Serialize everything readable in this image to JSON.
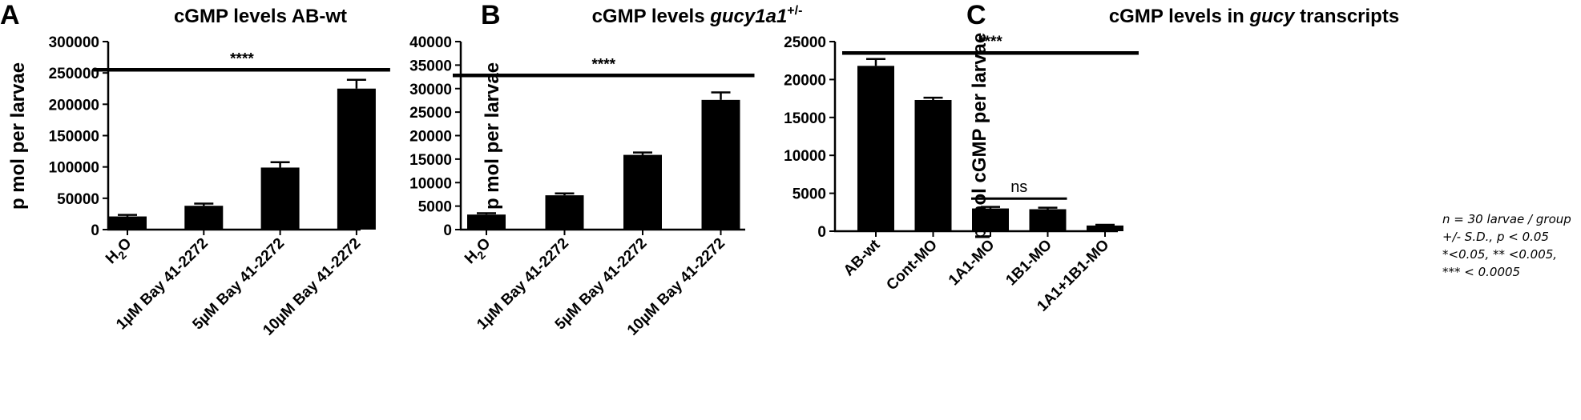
{
  "chart_data": [
    {
      "panel": "A",
      "type": "bar",
      "title": "cGMP levels AB-wt",
      "ylabel": "p mol per larvae",
      "ylim": [
        0,
        300000
      ],
      "yticks": [
        0,
        50000,
        100000,
        150000,
        200000,
        250000,
        300000
      ],
      "yticklabels": [
        "0",
        "50000",
        "100000",
        "150000",
        "200000",
        "250000",
        "300000"
      ],
      "categories": [
        "H2O",
        "1µM Bay 41-2272",
        "5µM Bay 41-2272",
        "10µM Bay 41-2272"
      ],
      "values": [
        21000,
        38000,
        99000,
        225000
      ],
      "errors": [
        2500,
        3500,
        8500,
        14000
      ],
      "significance": [
        {
          "label": "****",
          "y": 255000,
          "from": 0,
          "to": 3
        }
      ]
    },
    {
      "panel": "B",
      "type": "bar",
      "title": "cGMP levels gucy1a1+/-",
      "title_parts": {
        "text": "cGMP levels ",
        "italic": "gucy1a1",
        "sup": "+/-"
      },
      "ylabel": "p mol per larvae",
      "ylim": [
        0,
        40000
      ],
      "yticks": [
        0,
        5000,
        10000,
        15000,
        20000,
        25000,
        30000,
        35000,
        40000
      ],
      "yticklabels": [
        "0",
        "5000",
        "10000",
        "15000",
        "20000",
        "25000",
        "30000",
        "35000",
        "40000"
      ],
      "categories": [
        "H2O",
        "1µM Bay 41-2272",
        "5µM Bay 41-2272",
        "10µM Bay 41-2272"
      ],
      "values": [
        3200,
        7300,
        15900,
        27600
      ],
      "errors": [
        300,
        400,
        500,
        1600
      ],
      "significance": [
        {
          "label": "****",
          "y": 32800,
          "from": 0,
          "to": 3
        }
      ]
    },
    {
      "panel": "C",
      "type": "bar",
      "title": "cGMP levels in gucy transcripts",
      "title_parts": {
        "before": "cGMP levels in ",
        "italic": "gucy",
        "after": " transcripts"
      },
      "ylabel": "p mol cGMP per larvae",
      "ylim": [
        0,
        25000
      ],
      "yticks": [
        0,
        5000,
        10000,
        15000,
        20000,
        25000
      ],
      "yticklabels": [
        "0",
        "5000",
        "10000",
        "15000",
        "20000",
        "25000"
      ],
      "categories": [
        "AB-wt",
        "Cont-MO",
        "1A1-MO",
        "1B1-MO",
        "1A1+1B1-MO"
      ],
      "values": [
        21800,
        17300,
        3000,
        2900,
        750
      ],
      "errors": [
        900,
        300,
        200,
        200,
        100
      ],
      "significance": [
        {
          "label": "****",
          "y": 23500,
          "from": 0,
          "to": 4
        },
        {
          "label": "ns",
          "y": 4300,
          "from": 2,
          "to": 3
        }
      ]
    }
  ],
  "note_lines": [
    "n = 30 larvae / group",
    "+/- S.D., p < 0.05",
    "*<0.05, ** <0.005,",
    "*** < 0.0005"
  ]
}
